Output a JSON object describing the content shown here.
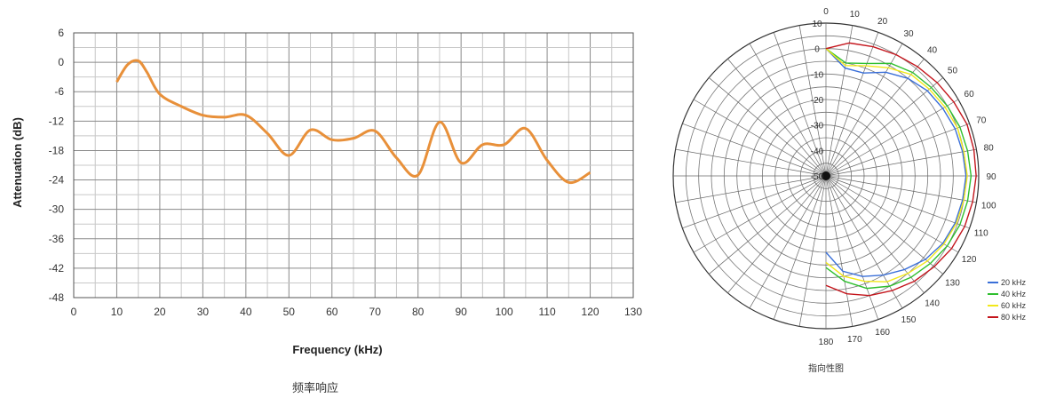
{
  "chart_data": [
    {
      "type": "line",
      "xlabel": "Frequency (kHz)",
      "ylabel": "Attenuation (dB)",
      "xlim": [
        0,
        130
      ],
      "ylim": [
        -48,
        6
      ],
      "x_ticks": [
        0,
        10,
        20,
        30,
        40,
        50,
        60,
        70,
        80,
        90,
        100,
        110,
        120,
        130
      ],
      "y_ticks": [
        6,
        0,
        -6,
        -12,
        -18,
        -24,
        -30,
        -36,
        -42,
        -48
      ],
      "grid": true,
      "series": [
        {
          "color": "#e8903a",
          "x": [
            10,
            12.5,
            15,
            17,
            20,
            25,
            30,
            35,
            40,
            45,
            50,
            55,
            60,
            65,
            70,
            75,
            80,
            85,
            90,
            95,
            100,
            105,
            110,
            115,
            120
          ],
          "y": [
            -4,
            -0.5,
            0.3,
            -2,
            -6.5,
            -9,
            -10.8,
            -11.2,
            -10.8,
            -14.5,
            -19,
            -13.8,
            -15.8,
            -15.5,
            -14,
            -19.5,
            -23,
            -12.2,
            -20.5,
            -16.8,
            -16.8,
            -13.5,
            -20,
            -24.5,
            -22.5
          ]
        }
      ],
      "caption": "频率响应"
    },
    {
      "type": "polar",
      "angle_ticks": [
        0,
        10,
        20,
        30,
        40,
        50,
        60,
        70,
        80,
        90,
        100,
        110,
        120,
        130,
        140,
        150,
        160,
        170,
        180
      ],
      "radial_ticks": [
        10,
        0,
        -10,
        -20,
        -30,
        -40,
        -50
      ],
      "radial_range": [
        -50,
        10
      ],
      "grid": true,
      "legend_position": "bottom-right",
      "series": [
        {
          "name": "20 kHz",
          "color": "#3a6fd8",
          "theta": [
            0,
            10,
            20,
            30,
            40,
            50,
            60,
            70,
            80,
            90,
            100,
            110,
            120,
            130,
            140,
            150,
            160,
            170,
            180
          ],
          "r": [
            0,
            -7,
            -7,
            -3,
            0,
            2,
            3,
            4,
            4.5,
            5,
            4.5,
            4,
            3,
            1,
            -2,
            -5,
            -8,
            -12,
            -20
          ]
        },
        {
          "name": "40 kHz",
          "color": "#2fbf2f",
          "theta": [
            0,
            10,
            20,
            30,
            40,
            50,
            60,
            70,
            80,
            90,
            100,
            110,
            120,
            130,
            140,
            150,
            160,
            170,
            180
          ],
          "r": [
            0,
            -5,
            -3,
            1,
            3,
            4,
            5,
            6,
            6.5,
            7,
            6.5,
            6,
            5,
            3.5,
            2,
            0,
            -3,
            -8,
            -14
          ]
        },
        {
          "name": "60 kHz",
          "color": "#f2e81a",
          "theta": [
            0,
            10,
            20,
            30,
            40,
            50,
            60,
            70,
            80,
            90,
            100,
            110,
            120,
            130,
            140,
            150,
            160,
            170,
            180
          ],
          "r": [
            0,
            -6,
            -4,
            -1,
            2,
            3,
            4,
            5,
            5,
            5.5,
            5,
            4.5,
            3.5,
            2,
            0,
            -2,
            -6,
            -10,
            -16
          ]
        },
        {
          "name": "80 kHz",
          "color": "#c4151c",
          "theta": [
            0,
            10,
            20,
            30,
            40,
            50,
            60,
            70,
            80,
            90,
            100,
            110,
            120,
            130,
            140,
            150,
            160,
            170,
            180
          ],
          "r": [
            0,
            3,
            4,
            5,
            6,
            7,
            8,
            9,
            9,
            9,
            8.5,
            8,
            7,
            5.5,
            4,
            2,
            0,
            -3,
            -7
          ]
        }
      ],
      "caption": "指向性图"
    }
  ]
}
